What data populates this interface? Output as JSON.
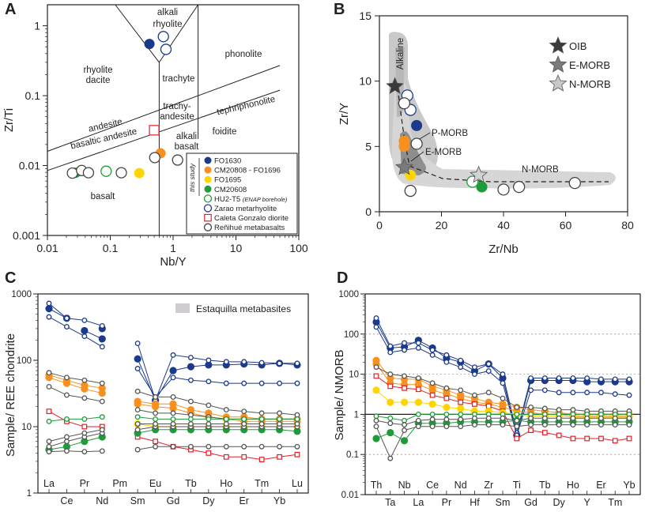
{
  "chart_data": [
    {
      "panel": "A",
      "type": "scatter",
      "xlabel": "Nb/Y",
      "ylabel": "Zr/Ti",
      "xscale": "log",
      "yscale": "log",
      "xlim": [
        0.01,
        100
      ],
      "ylim": [
        0.001,
        2
      ],
      "x_ticks": [
        "0.01",
        "0.1",
        "1",
        "10",
        "100"
      ],
      "y_ticks": [
        "0.001",
        "0.01",
        "0.1",
        "1"
      ],
      "field_labels": [
        {
          "lines": [
            "alkali",
            "rhyolite"
          ]
        },
        {
          "lines": [
            "phonolite"
          ]
        },
        {
          "lines": [
            "rhyolite",
            "dacite"
          ]
        },
        {
          "lines": [
            "trachyte"
          ]
        },
        {
          "lines": [
            "tephriphonolite"
          ]
        },
        {
          "lines": [
            "andesite"
          ]
        },
        {
          "lines": [
            "trachy-",
            "andesite"
          ]
        },
        {
          "lines": [
            "basaltic andesite"
          ]
        },
        {
          "lines": [
            "foidite"
          ]
        },
        {
          "lines": [
            "alkali",
            "basalt"
          ]
        },
        {
          "lines": [
            "basalt"
          ]
        }
      ],
      "legend_side_label": "this study",
      "legend": [
        {
          "label": "FO1630",
          "color": "#1c3a8c",
          "marker": "filled-circle"
        },
        {
          "label": "CM20808 - FO1696",
          "color": "#f7901e",
          "marker": "filled-circle"
        },
        {
          "label": "FO1695",
          "color": "#ffd400",
          "marker": "filled-circle"
        },
        {
          "label": "CM20608",
          "color": "#1e9b3a",
          "marker": "filled-circle"
        },
        {
          "label": "HU2-T5",
          "note": "(ENAP borehole)",
          "color": "#1e9b3a",
          "marker": "open-circle"
        },
        {
          "label": "Zarao metarhyolite",
          "color": "#1c3a8c",
          "marker": "open-circle"
        },
        {
          "label": "Caleta Gonzalo diorite",
          "color": "#e41e26",
          "marker": "open-square"
        },
        {
          "label": "Reñihué metabasalts",
          "color": "#444444",
          "marker": "open-circle"
        }
      ],
      "points": [
        {
          "x": 0.42,
          "y": 0.55,
          "style": "filled",
          "color": "#1c3a8c"
        },
        {
          "x": 0.7,
          "y": 0.7,
          "style": "open",
          "color": "#1c3a8c"
        },
        {
          "x": 0.77,
          "y": 0.46,
          "style": "open",
          "color": "#1c3a8c"
        },
        {
          "x": 0.63,
          "y": 0.015,
          "style": "filled",
          "color": "#f7901e"
        },
        {
          "x": 0.51,
          "y": 0.013,
          "style": "open",
          "color": "#444444"
        },
        {
          "x": 1.18,
          "y": 0.012,
          "style": "open",
          "color": "#444444"
        },
        {
          "x": 0.5,
          "y": 0.032,
          "style": "square",
          "color": "#e41e26"
        },
        {
          "x": 0.29,
          "y": 0.0078,
          "style": "filled",
          "color": "#ffd400"
        },
        {
          "x": 0.028,
          "y": 0.0079,
          "style": "filled",
          "color": "#1e9b3a"
        },
        {
          "x": 0.086,
          "y": 0.0083,
          "style": "open",
          "color": "#1e9b3a"
        },
        {
          "x": 0.025,
          "y": 0.0078,
          "style": "open",
          "color": "#444444"
        },
        {
          "x": 0.035,
          "y": 0.0085,
          "style": "open",
          "color": "#444444"
        },
        {
          "x": 0.045,
          "y": 0.0079,
          "style": "open",
          "color": "#444444"
        },
        {
          "x": 0.15,
          "y": 0.0079,
          "style": "open",
          "color": "#444444"
        }
      ]
    },
    {
      "panel": "B",
      "type": "scatter",
      "xlabel": "Zr/Nb",
      "ylabel": "Zr/Y",
      "xlim": [
        0,
        80
      ],
      "ylim": [
        0,
        15
      ],
      "x_ticks": [
        "0",
        "20",
        "40",
        "60",
        "80"
      ],
      "y_ticks": [
        "0",
        "5",
        "10",
        "15"
      ],
      "field_labels": [
        "Alkaline",
        "P-MORB",
        "E-MORB",
        "N-MORB"
      ],
      "legend": [
        {
          "label": "OIB",
          "color": "#3a3a3a",
          "marker": "star"
        },
        {
          "label": "E-MORB",
          "color": "#7a7a7a",
          "marker": "star"
        },
        {
          "label": "N-MORB",
          "color": "#c8c8c8",
          "marker": "star"
        }
      ],
      "reference_stars": [
        {
          "name": "OIB",
          "x": 5,
          "y": 9.6
        },
        {
          "name": "E-MORB",
          "x": 8,
          "y": 3.4
        },
        {
          "name": "N-MORB",
          "x": 32,
          "y": 2.8
        }
      ],
      "points": [
        {
          "x": 12,
          "y": 6.6,
          "style": "filled",
          "color": "#1c3a8c"
        },
        {
          "x": 9,
          "y": 8.9,
          "style": "open",
          "color": "#1c3a8c"
        },
        {
          "x": 10,
          "y": 7.8,
          "style": "open",
          "color": "#1c3a8c"
        },
        {
          "x": 8,
          "y": 5.4,
          "style": "filled",
          "color": "#f7901e"
        },
        {
          "x": 8,
          "y": 5.0,
          "style": "filled",
          "color": "#f7901e"
        },
        {
          "x": 10,
          "y": 2.8,
          "style": "filled",
          "color": "#ffd400"
        },
        {
          "x": 33,
          "y": 1.9,
          "style": "filled",
          "color": "#1e9b3a"
        },
        {
          "x": 30,
          "y": 2.3,
          "style": "open",
          "color": "#1e9b3a"
        },
        {
          "x": 8,
          "y": 8.3,
          "style": "open",
          "color": "#444444"
        },
        {
          "x": 12,
          "y": 5.2,
          "style": "open",
          "color": "#444444"
        },
        {
          "x": 10,
          "y": 1.6,
          "style": "open",
          "color": "#444444"
        },
        {
          "x": 40,
          "y": 1.7,
          "style": "open",
          "color": "#444444"
        },
        {
          "x": 45,
          "y": 1.9,
          "style": "open",
          "color": "#444444"
        },
        {
          "x": 63,
          "y": 2.2,
          "style": "open",
          "color": "#444444"
        }
      ]
    },
    {
      "panel": "C",
      "type": "line",
      "ylabel": "Sample/ REE chondrite",
      "yscale": "log",
      "ylim": [
        1,
        1000
      ],
      "y_ticks": [
        "1",
        "10",
        "100",
        "1000"
      ],
      "categories": [
        "La",
        "Ce",
        "Pr",
        "Nd",
        "Pm",
        "Sm",
        "Eu",
        "Gd",
        "Tb",
        "Dy",
        "Ho",
        "Er",
        "Tm",
        "Yb",
        "Lu"
      ],
      "shaded_legend": "Estaquilla metabasites",
      "series": [
        {
          "name": "FO1630 a",
          "color": "#1c3a8c",
          "marker": "filled",
          "values": [
            600,
            430,
            null,
            300,
            null,
            null,
            null,
            null,
            null,
            null,
            null,
            null,
            null,
            null,
            null
          ]
        },
        {
          "name": "FO1630 b",
          "color": "#1c3a8c",
          "marker": "filled",
          "values": [
            null,
            null,
            280,
            210,
            null,
            105,
            25,
            70,
            80,
            85,
            85,
            88,
            85,
            90,
            85
          ]
        },
        {
          "name": "Zarao a",
          "color": "#1c3a8c",
          "marker": "open",
          "values": [
            720,
            430,
            400,
            330,
            null,
            180,
            25,
            120,
            110,
            100,
            95,
            95,
            92,
            90,
            90
          ]
        },
        {
          "name": "Zarao b",
          "color": "#1c3a8c",
          "marker": "open",
          "values": [
            450,
            320,
            230,
            160,
            null,
            75,
            28,
            55,
            50,
            48,
            45,
            45,
            45,
            45,
            45
          ]
        },
        {
          "name": "CM20808 - FO1696 a",
          "color": "#f7901e",
          "marker": "filled",
          "values": [
            60,
            50,
            42,
            38,
            null,
            24,
            22,
            22,
            18,
            16,
            14,
            14,
            13,
            13,
            13
          ]
        },
        {
          "name": "CM20808 - FO1696 b",
          "color": "#f7901e",
          "marker": "filled",
          "values": [
            55,
            45,
            37,
            32,
            null,
            22,
            20,
            19,
            16,
            14,
            13,
            12,
            12,
            12,
            12
          ]
        },
        {
          "name": "Reñihué a",
          "color": "#555555",
          "marker": "open",
          "values": [
            65,
            55,
            50,
            45,
            null,
            34,
            28,
            28,
            24,
            21,
            18,
            17,
            16,
            16,
            15
          ]
        },
        {
          "name": "Reñihué b",
          "color": "#555555",
          "marker": "open",
          "values": [
            40,
            30,
            27,
            24,
            null,
            18,
            16,
            16,
            15,
            14,
            13,
            13,
            13,
            13,
            13
          ]
        },
        {
          "name": "Caleta Gonzalo",
          "color": "#e41e26",
          "marker": "square",
          "values": [
            17,
            12,
            10,
            10,
            null,
            7,
            6,
            5,
            4.5,
            4,
            3.5,
            3.5,
            3.2,
            3.5,
            3.8
          ]
        },
        {
          "name": "FO1695",
          "color": "#ffd400",
          "marker": "filled",
          "values": [
            null,
            null,
            null,
            null,
            null,
            11,
            10,
            10,
            10,
            10,
            10,
            10,
            10,
            10,
            10
          ]
        },
        {
          "name": "HU2-T5",
          "color": "#1e9b3a",
          "marker": "open",
          "values": [
            12,
            13,
            13,
            14,
            null,
            14,
            13,
            13,
            13,
            13,
            13,
            13,
            13,
            13,
            13
          ]
        },
        {
          "name": "CM20608",
          "color": "#1e9b3a",
          "marker": "filled",
          "values": [
            4.5,
            5,
            6,
            7,
            null,
            8,
            9,
            9,
            9,
            9,
            9,
            9,
            9,
            9,
            8.5
          ]
        },
        {
          "name": "Reñihué c",
          "color": "#555555",
          "marker": "open",
          "values": [
            5,
            6,
            7,
            8,
            null,
            9,
            10,
            10,
            10,
            10,
            10,
            10,
            10,
            10,
            10
          ]
        },
        {
          "name": "Reñihué d",
          "color": "#555555",
          "marker": "open",
          "values": [
            6,
            7,
            8,
            9,
            null,
            11,
            11,
            11,
            11,
            11,
            11,
            11,
            11,
            11,
            11
          ]
        },
        {
          "name": "Reñihué e",
          "color": "#555555",
          "marker": "open",
          "values": [
            4.2,
            4.3,
            4.2,
            4.3,
            null,
            4.5,
            5,
            5,
            5,
            5,
            5,
            5,
            5,
            5,
            5
          ]
        }
      ]
    },
    {
      "panel": "D",
      "type": "line",
      "ylabel": "Sample/ NMORB",
      "yscale": "log",
      "ylim": [
        0.01,
        1000
      ],
      "y_ticks": [
        "0.01",
        "0.1",
        "1",
        "10",
        "100",
        "1000"
      ],
      "categories": [
        "Th",
        "Ta",
        "Nb",
        "La",
        "Ce",
        "Pr",
        "Nd",
        "Hf",
        "Zr",
        "Sm",
        "Ti",
        "Gd",
        "Tb",
        "Dy",
        "Ho",
        "Y",
        "Er",
        "Tm",
        "Yb"
      ],
      "series": [
        {
          "name": "FO1630",
          "color": "#1c3a8c",
          "marker": "filled",
          "values": [
            200,
            45,
            48,
            70,
            45,
            25,
            20,
            12,
            18,
            8,
            0.3,
            7,
            7,
            7,
            7,
            6.5,
            6.5,
            6.5,
            6.5
          ]
        },
        {
          "name": "Zarao a",
          "color": "#1c3a8c",
          "marker": "open",
          "values": [
            250,
            50,
            60,
            60,
            40,
            30,
            22,
            15,
            18,
            10,
            0.35,
            8,
            8,
            8,
            8,
            8,
            7.5,
            7.5,
            7.5
          ]
        },
        {
          "name": "Zarao b",
          "color": "#1c3a8c",
          "marker": "open",
          "values": [
            150,
            35,
            40,
            45,
            30,
            20,
            15,
            10,
            12,
            6,
            0.3,
            4,
            4,
            3.5,
            3.5,
            3.5,
            3.5,
            3.2,
            3
          ]
        },
        {
          "name": "CM20808 - FO1696 a",
          "color": "#f7901e",
          "marker": "filled",
          "values": [
            22,
            8,
            7.5,
            7.5,
            5,
            4,
            3,
            2.5,
            2,
            1.8,
            1.5,
            1.3,
            1.2,
            1.1,
            1,
            1,
            1,
            1,
            1
          ]
        },
        {
          "name": "CM20808 - FO1696 b",
          "color": "#f7901e",
          "marker": "filled",
          "values": [
            18,
            6,
            5.5,
            5.5,
            4,
            3.2,
            2.5,
            2,
            1.8,
            1.5,
            1.2,
            1.1,
            1,
            1,
            0.9,
            0.9,
            0.9,
            0.9,
            0.9
          ]
        },
        {
          "name": "Reñihué a",
          "color": "#555555",
          "marker": "open",
          "values": [
            15,
            10,
            9,
            8,
            6,
            4.5,
            4,
            3,
            3.5,
            2.5,
            1.5,
            1.5,
            1.4,
            1.3,
            1.3,
            1.2,
            1.2,
            1.2,
            1.2
          ]
        },
        {
          "name": "Caleta Gonzalo",
          "color": "#e41e26",
          "marker": "square",
          "values": [
            9,
            5,
            4.5,
            4.2,
            3,
            2.5,
            2,
            1.8,
            1.6,
            1.2,
            0.25,
            0.4,
            0.35,
            0.3,
            0.25,
            0.25,
            0.25,
            0.22,
            0.25
          ]
        },
        {
          "name": "FO1695",
          "color": "#ffd400",
          "marker": "filled",
          "values": [
            4,
            2,
            2,
            2,
            1.8,
            1.5,
            1.4,
            1.2,
            1.2,
            1.1,
            1,
            0.9,
            0.9,
            0.9,
            0.85,
            0.85,
            0.85,
            0.85,
            0.85
          ]
        },
        {
          "name": "HU2-T5",
          "color": "#1e9b3a",
          "marker": "open",
          "values": [
            0.9,
            0.8,
            0.7,
            1,
            1,
            1,
            1,
            1,
            1,
            1,
            1,
            1,
            1,
            1,
            1,
            1,
            1,
            1,
            1
          ]
        },
        {
          "name": "CM20608",
          "color": "#1e9b3a",
          "marker": "filled",
          "values": [
            0.25,
            0.35,
            0.22,
            0.6,
            0.6,
            0.6,
            0.65,
            0.65,
            0.65,
            0.65,
            0.7,
            0.65,
            0.65,
            0.65,
            0.65,
            0.65,
            0.65,
            0.65,
            0.65
          ]
        },
        {
          "name": "Reñihué b",
          "color": "#555555",
          "marker": "open",
          "values": [
            0.5,
            0.08,
            0.4,
            0.5,
            0.5,
            0.5,
            0.5,
            0.55,
            0.55,
            0.55,
            0.5,
            0.55,
            0.55,
            0.55,
            0.55,
            0.55,
            0.55,
            0.55,
            0.55
          ]
        },
        {
          "name": "Reñihué c",
          "color": "#555555",
          "marker": "open",
          "values": [
            0.7,
            0.6,
            0.55,
            0.7,
            0.75,
            0.75,
            0.75,
            0.8,
            0.8,
            0.8,
            0.7,
            0.8,
            0.8,
            0.8,
            0.8,
            0.8,
            0.8,
            0.8,
            0.8
          ]
        }
      ]
    }
  ]
}
